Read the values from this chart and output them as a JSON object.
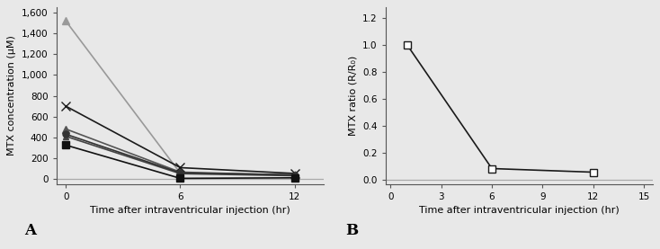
{
  "fig_facecolor": "#e8e8e8",
  "panel_A": {
    "xlabel": "Time after intraventricular injection (hr)",
    "ylabel": "MTX concentration (μM)",
    "xticks": [
      0,
      6,
      12
    ],
    "xlim": [
      -0.5,
      13.5
    ],
    "ylim": [
      -50,
      1650
    ],
    "yticks": [
      0,
      200,
      400,
      600,
      800,
      1000,
      1200,
      1400,
      1600
    ],
    "ytick_labels": [
      "0",
      "200",
      "400",
      "600",
      "800",
      "1,000",
      "1,200",
      "1,400",
      "1,600"
    ],
    "series": [
      {
        "x": [
          0,
          6,
          12
        ],
        "y": [
          1520,
          55,
          42
        ],
        "color": "#999999",
        "marker": "^",
        "markersize": 6,
        "linewidth": 1.2,
        "mfc": "#999999",
        "mec": "#999999",
        "zorder": 1
      },
      {
        "x": [
          0,
          6,
          12
        ],
        "y": [
          700,
          108,
          52
        ],
        "color": "#1a1a1a",
        "marker": "x",
        "markersize": 7,
        "linewidth": 1.2,
        "mfc": "#1a1a1a",
        "mec": "#1a1a1a",
        "zorder": 3
      },
      {
        "x": [
          0,
          6,
          12
        ],
        "y": [
          480,
          65,
          35
        ],
        "color": "#555555",
        "marker": "^",
        "markersize": 6,
        "linewidth": 1.2,
        "mfc": "#555555",
        "mec": "#555555",
        "zorder": 2
      },
      {
        "x": [
          0,
          6,
          12
        ],
        "y": [
          430,
          58,
          38
        ],
        "color": "#333333",
        "marker": "o",
        "markersize": 5,
        "linewidth": 1.2,
        "mfc": "#333333",
        "mec": "#333333",
        "zorder": 4
      },
      {
        "x": [
          0,
          6,
          12
        ],
        "y": [
          410,
          50,
          30
        ],
        "color": "#444444",
        "marker": "^",
        "markersize": 5,
        "linewidth": 1.2,
        "mfc": "#444444",
        "mec": "#444444",
        "zorder": 2
      },
      {
        "x": [
          0,
          6,
          12
        ],
        "y": [
          325,
          5,
          10
        ],
        "color": "#111111",
        "marker": "s",
        "markersize": 6,
        "linewidth": 1.2,
        "mfc": "#111111",
        "mec": "#111111",
        "zorder": 5
      }
    ],
    "label": "A",
    "hline_y": 0,
    "hline_color": "#aaaaaa"
  },
  "panel_B": {
    "xlabel": "Time after intraventricular injection (hr)",
    "ylabel": "MTX ratio (R/R₀)",
    "xticks": [
      0,
      3,
      6,
      9,
      12,
      15
    ],
    "xlim": [
      -0.3,
      15.5
    ],
    "ylim": [
      -0.03,
      1.28
    ],
    "yticks": [
      0.0,
      0.2,
      0.4,
      0.6,
      0.8,
      1.0,
      1.2
    ],
    "series": [
      {
        "x": [
          1,
          6,
          12
        ],
        "y": [
          1.0,
          0.085,
          0.058
        ],
        "color": "#1a1a1a",
        "marker": "s",
        "markersize": 6,
        "linewidth": 1.2,
        "mfc": "white",
        "mec": "#1a1a1a"
      }
    ],
    "label": "B",
    "hline_y": 0,
    "hline_color": "#aaaaaa"
  }
}
